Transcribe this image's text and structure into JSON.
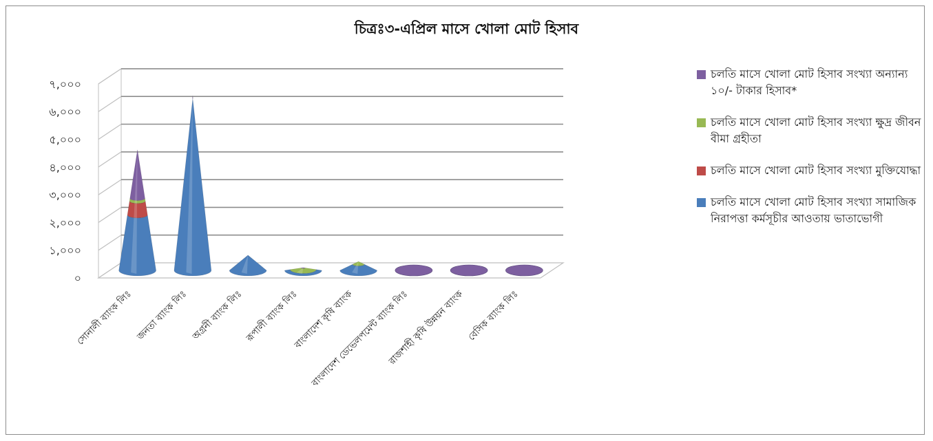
{
  "chart_data": {
    "type": "bar",
    "title": "চিত্রঃ৩-এপ্রিল মাসে খোলা মোট হিসাব",
    "categories": [
      "সোনালী ব্যাংক লিঃ",
      "জনতা ব্যাংক লিঃ",
      "অগ্রনী ব্যাংক লিঃ",
      "রূপালী ব্যাংক লিঃ",
      "বাংলাদেশ কৃষি ব্যাংক",
      "বাংলাদেশ ডেভেলপমেন্ট ব্যাংক লিঃ",
      "রাজশাহী কৃষি উন্নয়ন ব্যাংক",
      "বেসিক ব্যাংক লিঃ"
    ],
    "ylim": [
      0,
      7000
    ],
    "yticks": [
      0,
      1000,
      2000,
      3000,
      4000,
      5000,
      6000,
      7000
    ],
    "ytick_labels": [
      "০",
      "১,০০০",
      "২,০০০",
      "৩,০০০",
      "৪,০০০",
      "৫,০০০",
      "৬,০০০",
      "৭,০০০"
    ],
    "stacked": true,
    "shape": "cone",
    "grid": true,
    "legend_position": "right",
    "series": [
      {
        "name": "চলতি মাসে খোলা মোট হিসাব সংখ্যা সামাজিক নিরাপত্তা কর্মসূচীর আওতায় ভাতাভোগী",
        "color": "#4a7ebb",
        "values": [
          2000,
          6200,
          550,
          30,
          220,
          0,
          0,
          0
        ]
      },
      {
        "name": "চলতি মাসে খোলা মোট হিসাব সংখ্যা মুক্তিযোদ্ধা",
        "color": "#be4b48",
        "values": [
          500,
          0,
          0,
          0,
          0,
          0,
          0,
          0
        ]
      },
      {
        "name": "চলতি মাসে খোলা মোট হিসাব সংখ্যা ক্ষুদ্র জীবন বীমা গ্রহীতা",
        "color": "#98b954",
        "values": [
          100,
          0,
          0,
          60,
          100,
          0,
          0,
          0
        ]
      },
      {
        "name": "চলতি মাসে খোলা মোট হিসাব সংখ্যা অন্যান্য ১০/- টাকার হিসাব*",
        "color": "#7d5fa0",
        "values": [
          1750,
          100,
          0,
          10,
          0,
          30,
          30,
          30
        ]
      }
    ]
  }
}
